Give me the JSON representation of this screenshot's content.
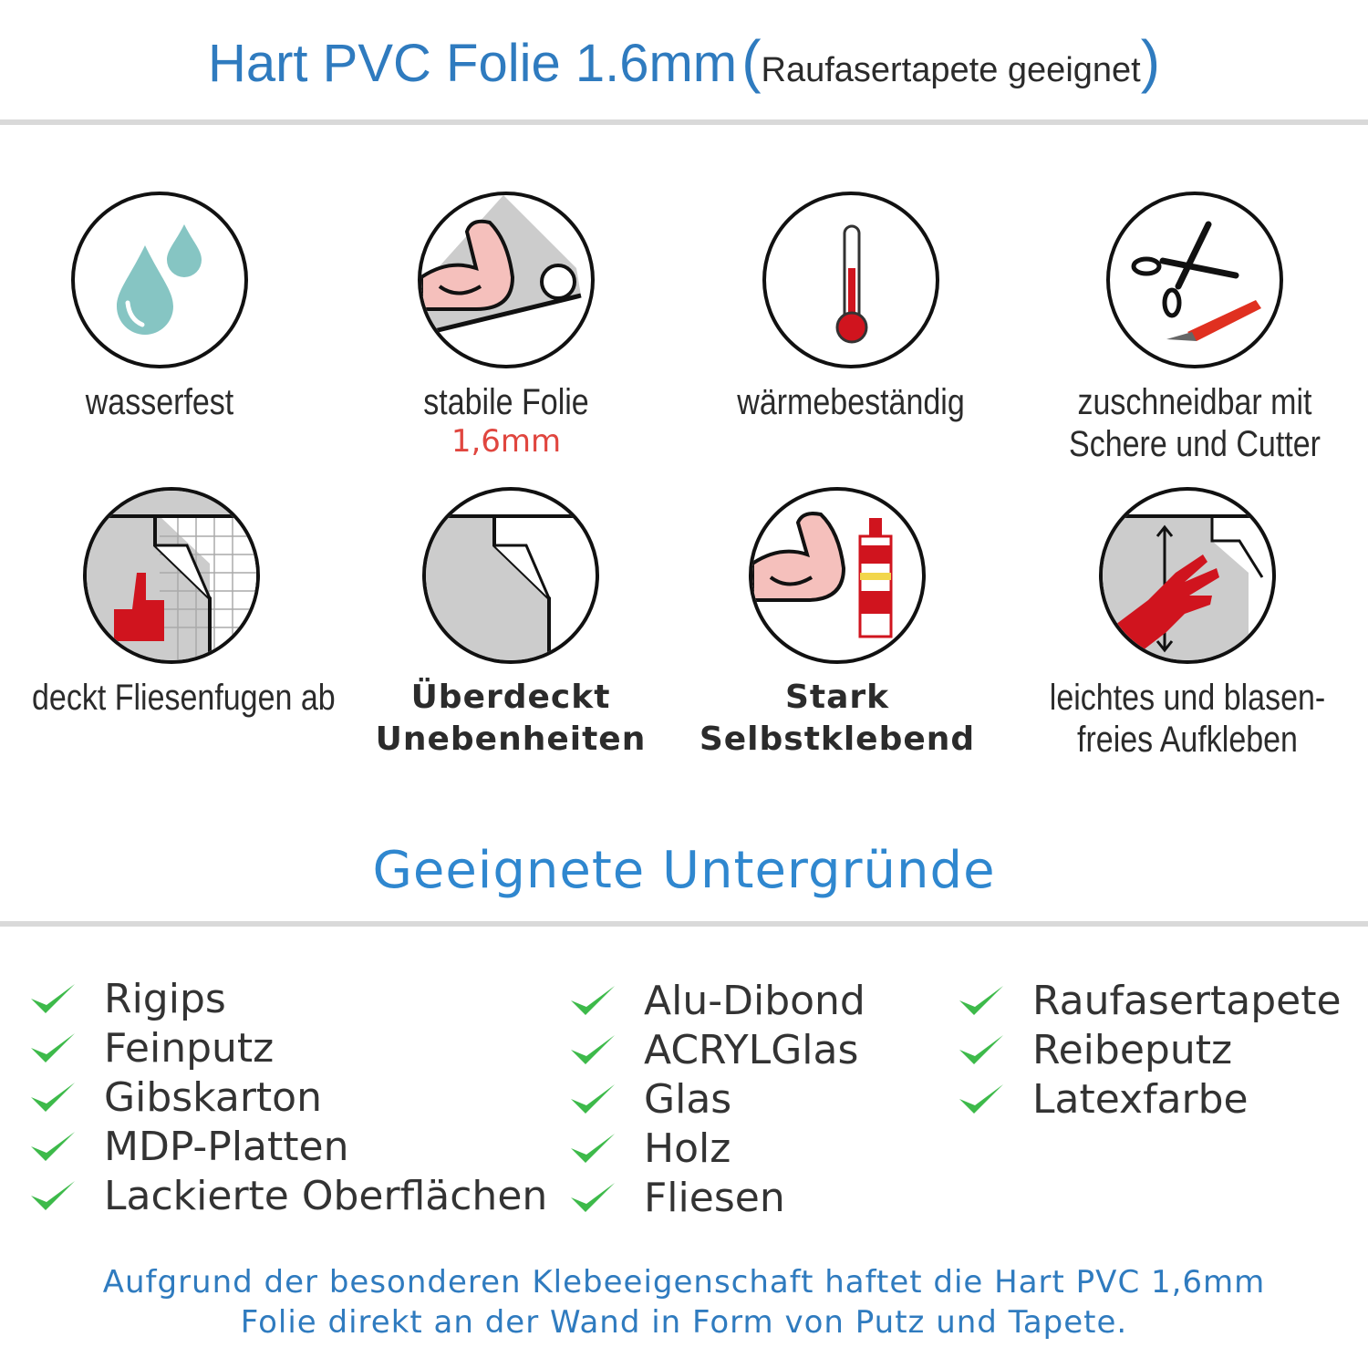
{
  "header": {
    "title": "Hart PVC Folie 1.6mm",
    "subtitle": "Raufasertapete geeignet"
  },
  "features": [
    {
      "icon": "water-drops-icon",
      "label": "wasserfest"
    },
    {
      "icon": "strong-arm-roll-icon",
      "label": "stabile Folie",
      "sublabel": "1,6mm"
    },
    {
      "icon": "thermometer-icon",
      "label": "wärmebeständig"
    },
    {
      "icon": "scissors-cutter-icon",
      "label": "zuschneidbar mit",
      "label2": "Schere und Cutter"
    },
    {
      "icon": "thumbs-up-tiles-icon",
      "label": "deckt Fliesenfugen ab"
    },
    {
      "icon": "peeled-foil-icon",
      "label": "Überdeckt",
      "label2": "Unebenheiten"
    },
    {
      "icon": "strong-arm-glue-icon",
      "label": "Stark",
      "label2": "Selbstklebend"
    },
    {
      "icon": "hand-smoothing-icon",
      "label": "leichtes und blasen-",
      "label2": "freies Aufkleben"
    }
  ],
  "surfaces": {
    "title": "Geeignete Untergründe",
    "columns": [
      [
        "Rigips",
        "Feinputz",
        "Gibskarton",
        "MDP-Platten",
        "Lackierte Oberflächen"
      ],
      [
        "Alu-Dibond",
        "ACRYLGlas",
        "Glas",
        "Holz",
        "Fliesen"
      ],
      [
        "Raufasertapete",
        "Reibeputz",
        "Latexfarbe"
      ]
    ]
  },
  "footer": {
    "line1": "Aufgrund der besonderen Klebeeigenschaft haftet die Hart PVC 1,6mm",
    "line2": "Folie direkt an der Wand in Form von Putz und Tapete."
  },
  "colors": {
    "accent": "#2f7bbf",
    "check": "#3dba4a",
    "highlight": "#e0463f",
    "icon_red": "#d0141e",
    "drop": "#86c5c3"
  }
}
